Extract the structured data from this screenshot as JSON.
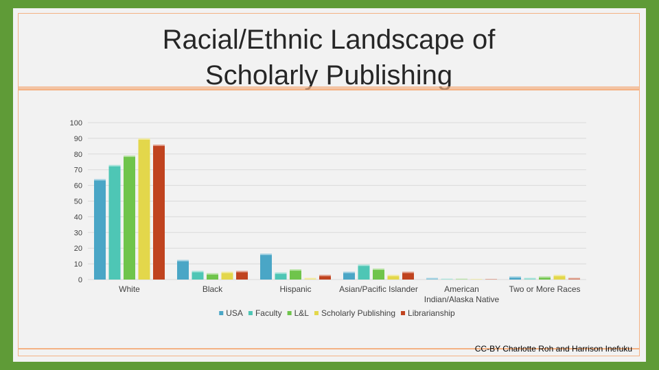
{
  "slide": {
    "title_line1": "Racial/Ethnic Landscape of",
    "title_line2": "Scholarly Publishing",
    "credit": "CC-BY Charlotte Roh and Harrison Inefuku"
  },
  "colors": {
    "background": "#5f9b37",
    "slide": "#f2f2f2",
    "border": "#f4b183"
  },
  "chart_data": {
    "type": "bar",
    "title": "",
    "xlabel": "",
    "ylabel": "",
    "ylim": [
      0,
      100
    ],
    "yticks": [
      "0",
      "10",
      "20",
      "30",
      "40",
      "50",
      "60",
      "70",
      "80",
      "90",
      "100"
    ],
    "grid": true,
    "legend_position": "bottom",
    "categories": [
      [
        "White"
      ],
      [
        "Black"
      ],
      [
        "Hispanic"
      ],
      [
        "Asian/Pacific Islander"
      ],
      [
        "American",
        "Indian/Alaska Native"
      ],
      [
        "Two or More Races"
      ]
    ],
    "series": [
      {
        "name": "USA",
        "color": "#4aa6c6",
        "values": [
          64,
          12.5,
          16.5,
          5,
          1,
          2
        ]
      },
      {
        "name": "Faculty",
        "color": "#4ec6b5",
        "values": [
          73,
          5.5,
          4.5,
          9.5,
          0.5,
          1
        ]
      },
      {
        "name": "L&L",
        "color": "#6fc44b",
        "values": [
          79,
          4,
          6.5,
          7,
          0.5,
          2
        ]
      },
      {
        "name": "Scholarly Publishing",
        "color": "#e3d74b",
        "values": [
          90,
          5,
          1,
          3,
          0.2,
          3
        ]
      },
      {
        "name": "Librarianship",
        "color": "#c0431f",
        "values": [
          86,
          5.5,
          3,
          5,
          0.3,
          1
        ]
      }
    ]
  }
}
